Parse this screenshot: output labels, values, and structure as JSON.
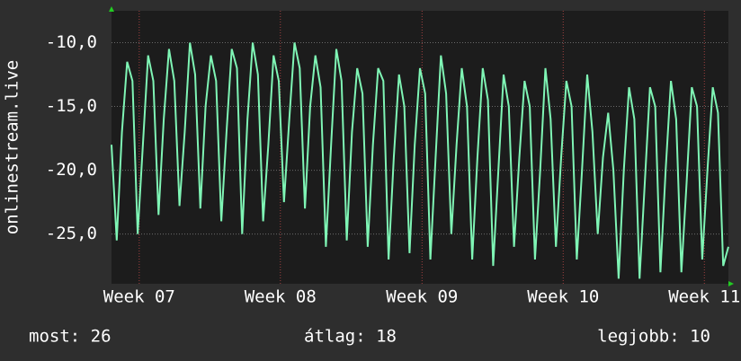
{
  "chart_data": {
    "type": "line",
    "ylabel": "onlinestream.live",
    "annotations": [
      "most: 26",
      "átlag: 18",
      "legjobb: 10"
    ],
    "series": [
      {
        "name": "onlinestream.live",
        "color": "#7ff5b5",
        "values": [
          -18,
          -25.5,
          -17,
          -11.5,
          -13,
          -25,
          -18,
          -11,
          -13,
          -23.5,
          -16,
          -10.5,
          -13,
          -22.8,
          -17,
          -10,
          -12.5,
          -23,
          -15,
          -11,
          -13,
          -24,
          -17,
          -10.5,
          -12,
          -25,
          -16,
          -10,
          -12.5,
          -24,
          -18,
          -11,
          -13,
          -22.5,
          -16,
          -10,
          -12,
          -23,
          -15,
          -11,
          -13.5,
          -26,
          -18,
          -10.5,
          -13,
          -25.5,
          -17,
          -12,
          -14,
          -26,
          -18,
          -12,
          -13,
          -27,
          -19,
          -12.5,
          -15,
          -26.5,
          -18,
          -12,
          -14,
          -27,
          -19,
          -11,
          -14,
          -25,
          -18,
          -12,
          -15,
          -27,
          -19,
          -12,
          -14.5,
          -27.5,
          -20,
          -12.5,
          -15,
          -26,
          -19,
          -13,
          -15,
          -27,
          -20,
          -12,
          -16,
          -26,
          -19,
          -13,
          -15,
          -27,
          -20,
          -12.5,
          -17,
          -25,
          -19,
          -15.5,
          -20,
          -28.5,
          -20,
          -13.5,
          -16,
          -28.5,
          -21,
          -13.5,
          -15,
          -28,
          -20,
          -13,
          -16,
          -28,
          -21,
          -13.5,
          -15,
          -27,
          -20,
          -13.5,
          -15.5,
          -27.5,
          -26
        ]
      }
    ],
    "xlim": [
      0,
      118
    ],
    "xticks": [
      {
        "value": 5.3,
        "label": "Week 07"
      },
      {
        "value": 32.3,
        "label": "Week 08"
      },
      {
        "value": 59.4,
        "label": "Week 09"
      },
      {
        "value": 86.4,
        "label": "Week 10"
      },
      {
        "value": 113.4,
        "label": "Week 11"
      }
    ],
    "ylim": [
      -28.9,
      -7.5
    ],
    "yticks": [
      {
        "value": -10,
        "label": "-10,0"
      },
      {
        "value": -15,
        "label": "-15,0"
      },
      {
        "value": -20,
        "label": "-20,0"
      },
      {
        "value": -25,
        "label": "-25,0"
      }
    ],
    "grid": true
  }
}
